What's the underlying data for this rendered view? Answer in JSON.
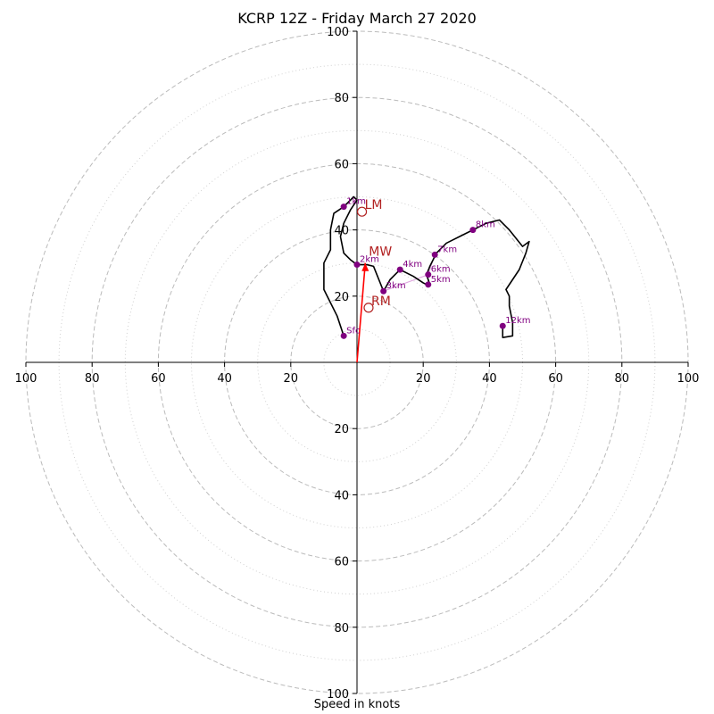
{
  "chart_data": {
    "type": "hodograph",
    "title": "KCRP 12Z - Friday March 27 2020",
    "xlabel": "Speed in knots",
    "range": [
      -100,
      100
    ],
    "rings_major": [
      20,
      40,
      60,
      80,
      100
    ],
    "rings_minor": [
      10,
      30,
      50,
      70,
      90
    ],
    "tick_labels_x": [
      "100",
      "80",
      "60",
      "40",
      "20",
      "20",
      "40",
      "60",
      "80",
      "100"
    ],
    "tick_values_x": [
      -100,
      -80,
      -60,
      -40,
      -20,
      20,
      40,
      60,
      80,
      100
    ],
    "tick_labels_y": [
      "100",
      "80",
      "60",
      "40",
      "20",
      "20",
      "40",
      "60",
      "80",
      "100"
    ],
    "tick_values_y": [
      100,
      80,
      60,
      40,
      20,
      -20,
      -40,
      -60,
      -80,
      -100
    ],
    "grid": true,
    "colors": {
      "profile": "#000000",
      "level_point": "#800080",
      "storm_motion": "#b22222",
      "mean_wind_vector": "#ff0000",
      "grid": "#bbbbbb"
    },
    "profile": [
      [
        -4,
        8
      ],
      [
        -6,
        14
      ],
      [
        -8,
        18
      ],
      [
        -10,
        22
      ],
      [
        -10,
        26
      ],
      [
        -10,
        30
      ],
      [
        -8,
        34
      ],
      [
        -8,
        40
      ],
      [
        -7,
        45
      ],
      [
        -4,
        47
      ],
      [
        -1,
        50
      ],
      [
        0,
        49
      ],
      [
        -2,
        46
      ],
      [
        -4,
        42
      ],
      [
        -5,
        38
      ],
      [
        -4,
        33
      ],
      [
        -2,
        31
      ],
      [
        0,
        29.5
      ],
      [
        3,
        29.5
      ],
      [
        5,
        29
      ],
      [
        7,
        24
      ],
      [
        8,
        21.5
      ],
      [
        10,
        25
      ],
      [
        13,
        28
      ],
      [
        17,
        26
      ],
      [
        20,
        24
      ],
      [
        21,
        23.5
      ],
      [
        22,
        23.5
      ],
      [
        21,
        26.5
      ],
      [
        22,
        29
      ],
      [
        24,
        33
      ],
      [
        27,
        36
      ],
      [
        31,
        38
      ],
      [
        35,
        40
      ],
      [
        39,
        42
      ],
      [
        43,
        43
      ],
      [
        46,
        40
      ],
      [
        50,
        35
      ],
      [
        52,
        36.5
      ],
      [
        51,
        33
      ],
      [
        49,
        28
      ],
      [
        47,
        25
      ],
      [
        45,
        22
      ],
      [
        46,
        20
      ],
      [
        46,
        17
      ],
      [
        47,
        12
      ],
      [
        47,
        8
      ],
      [
        44,
        7.5
      ],
      [
        44,
        11
      ]
    ],
    "points": [
      {
        "label": "Sfc",
        "u": -4,
        "v": 8
      },
      {
        "label": "1km",
        "u": -4,
        "v": 47
      },
      {
        "label": "2km",
        "u": 0,
        "v": 29.5
      },
      {
        "label": "3km",
        "u": 8,
        "v": 21.5
      },
      {
        "label": "4km",
        "u": 13,
        "v": 28
      },
      {
        "label": "5km",
        "u": 21.5,
        "v": 23.5
      },
      {
        "label": "6km",
        "u": 21.5,
        "v": 26.5
      },
      {
        "label": "7km",
        "u": 23.5,
        "v": 32.5
      },
      {
        "label": "8km",
        "u": 35,
        "v": 40
      },
      {
        "label": "12km",
        "u": 44,
        "v": 11
      }
    ],
    "storm_motions": [
      {
        "label": "LM",
        "u": 1.5,
        "v": 45.5
      },
      {
        "label": "RM",
        "u": 3.5,
        "v": 16.5
      }
    ],
    "mean_wind": {
      "label": "MW",
      "u": 2.5,
      "v": 30
    }
  }
}
